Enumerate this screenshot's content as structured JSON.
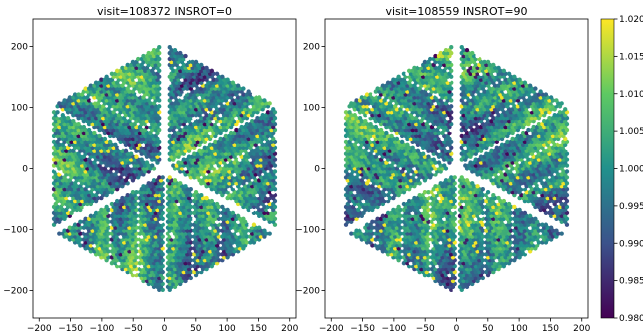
{
  "figure": {
    "colormap": "viridis",
    "colormap_stops": [
      "#440154",
      "#3b528b",
      "#21918c",
      "#5ec962",
      "#fde725"
    ],
    "missing_fiber_color": "#ffffff"
  },
  "chart_data": [
    {
      "type": "hexbin-scatter",
      "title": "visit=108372 INSROT=0",
      "xlim": [
        -210,
        210
      ],
      "ylim": [
        -245,
        245
      ],
      "x_ticks": [
        -200,
        -150,
        -100,
        -50,
        0,
        50,
        100,
        150,
        200
      ],
      "y_ticks": [
        -200,
        -100,
        0,
        100,
        200
      ],
      "rotation_deg": 0,
      "grid": false
    },
    {
      "type": "hexbin-scatter",
      "title": "visit=108559 INSROT=90",
      "xlim": [
        -210,
        210
      ],
      "ylim": [
        -245,
        245
      ],
      "x_ticks": [
        -200,
        -150,
        -100,
        -50,
        0,
        50,
        100,
        150,
        200
      ],
      "y_ticks": [
        -200,
        -100,
        0,
        100,
        200
      ],
      "rotation_deg": 90,
      "grid": false
    }
  ],
  "colorbar": {
    "min": 0.98,
    "max": 1.02,
    "ticks": [
      "0.980",
      "0.985",
      "0.990",
      "0.995",
      "1.000",
      "1.005",
      "1.010",
      "1.015",
      "1.020"
    ]
  }
}
